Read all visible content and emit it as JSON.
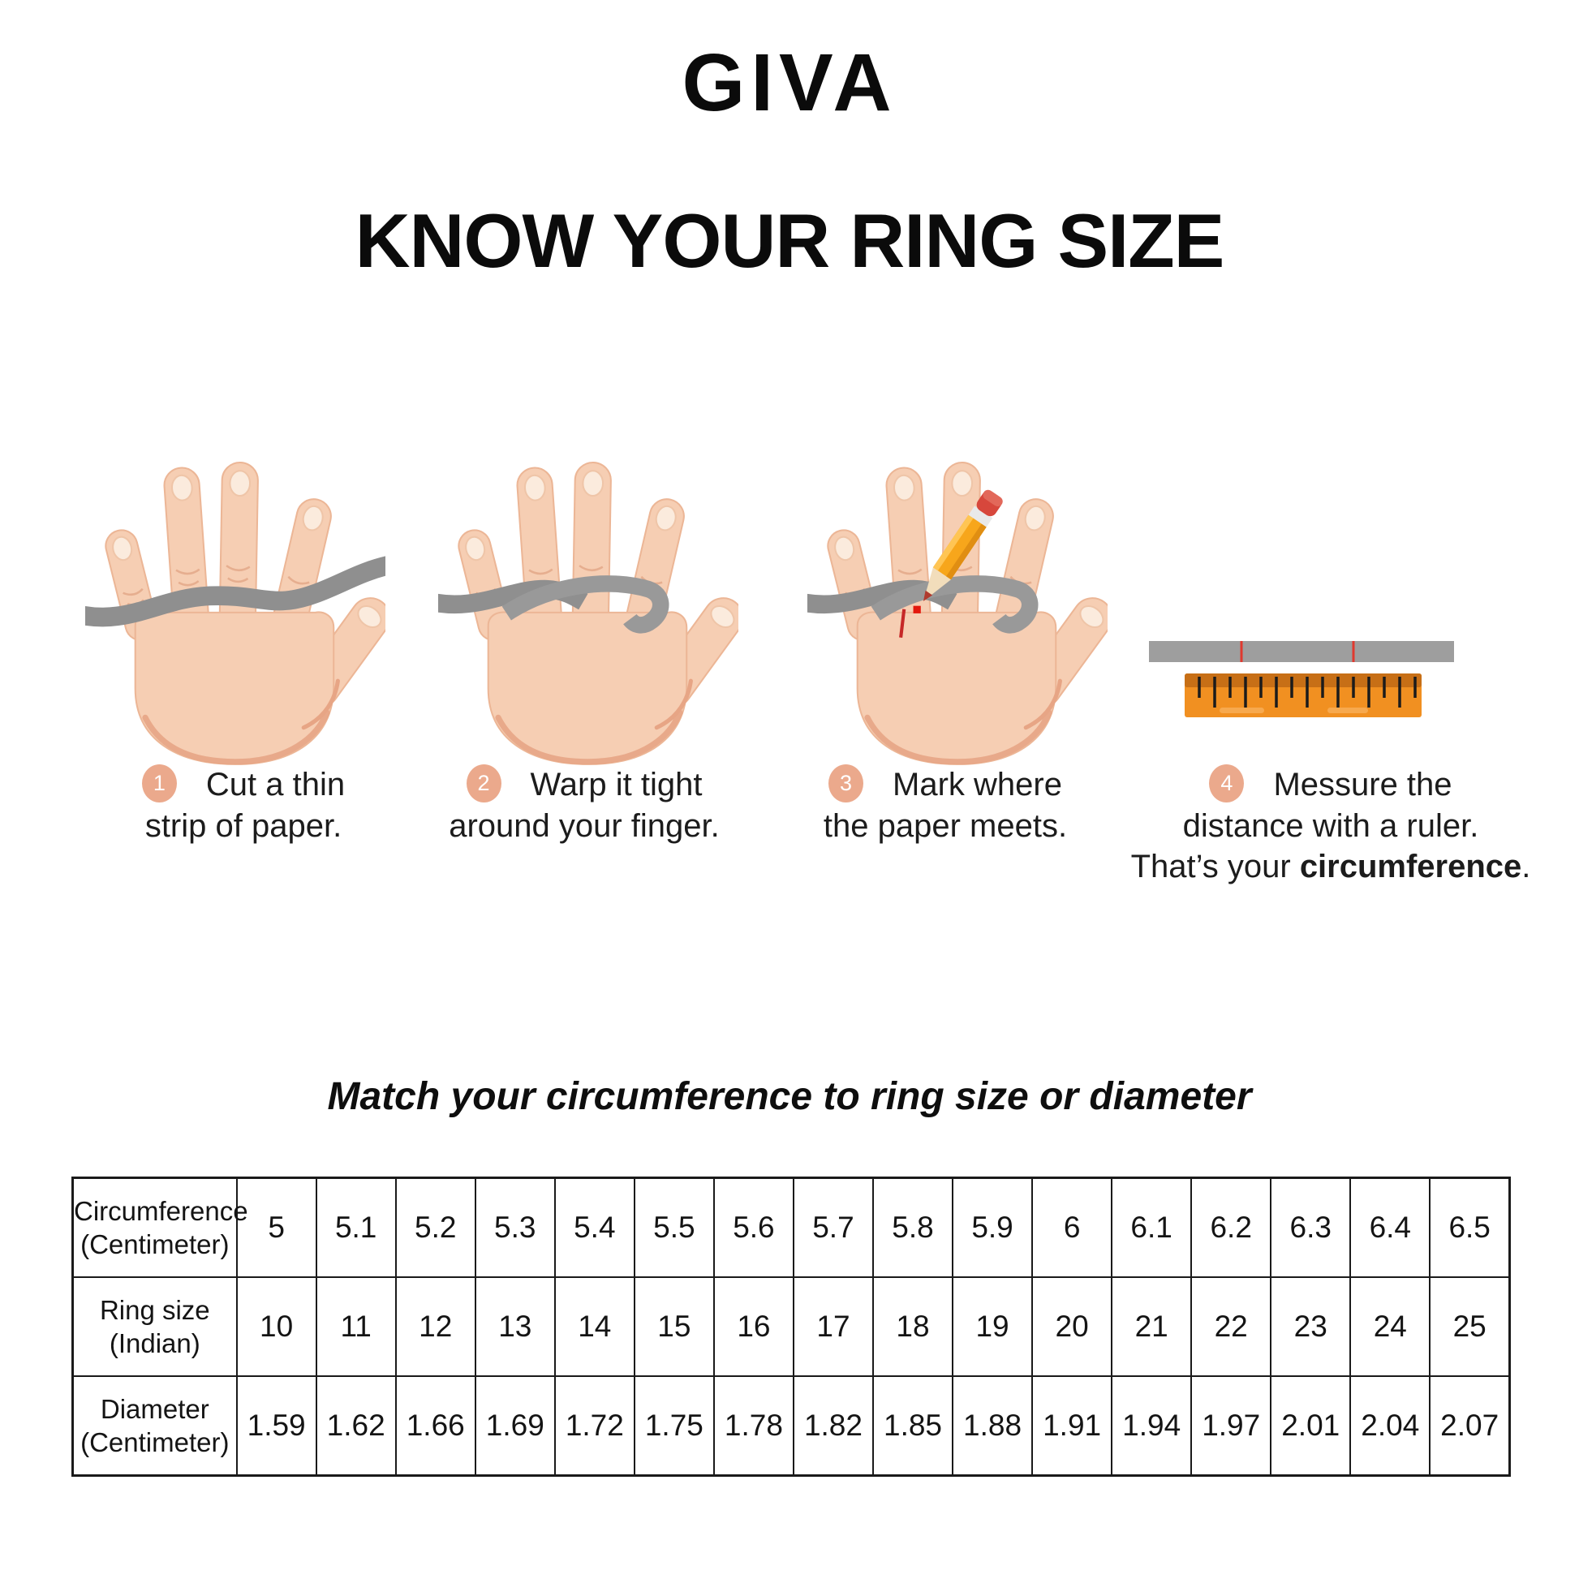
{
  "brand": "GIVA",
  "title": "KNOW YOUR RING SIZE",
  "steps": [
    {
      "number": "1",
      "line1": "Cut a thin",
      "line2": "strip of paper."
    },
    {
      "number": "2",
      "line1": "Warp it tight",
      "line2": "around your finger."
    },
    {
      "number": "3",
      "line1": "Mark where",
      "line2": "the paper meets."
    },
    {
      "number": "4",
      "line1": "Messure the",
      "line2": "distance with a ruler.",
      "line3_prefix": "That’s your ",
      "line3_bold": "circumference",
      "line3_suffix": "."
    }
  ],
  "match_heading": "Match your circumference to ring size or diameter",
  "table": {
    "rows": [
      {
        "label_line1": "Circumference",
        "label_line2": "(Centimeter)",
        "values": [
          "5",
          "5.1",
          "5.2",
          "5.3",
          "5.4",
          "5.5",
          "5.6",
          "5.7",
          "5.8",
          "5.9",
          "6",
          "6.1",
          "6.2",
          "6.3",
          "6.4",
          "6.5"
        ]
      },
      {
        "label_line1": "Ring size",
        "label_line2": "(Indian)",
        "values": [
          "10",
          "11",
          "12",
          "13",
          "14",
          "15",
          "16",
          "17",
          "18",
          "19",
          "20",
          "21",
          "22",
          "23",
          "24",
          "25"
        ]
      },
      {
        "label_line1": "Diameter",
        "label_line2": "(Centimeter)",
        "values": [
          "1.59",
          "1.62",
          "1.66",
          "1.69",
          "1.72",
          "1.75",
          "1.78",
          "1.82",
          "1.85",
          "1.88",
          "1.91",
          "1.94",
          "1.97",
          "2.01",
          "2.04",
          "2.07"
        ]
      }
    ]
  },
  "colors": {
    "step_badge": "#EBA98C",
    "skin": "#F6CEB3",
    "skin_shadow": "#E7A585",
    "paper_strip": "#8F8F8F",
    "mark_red": "#D92B23",
    "ruler_orange": "#F19021",
    "ruler_band": "#C76F16",
    "pencil_yellow": "#F7A61B",
    "pencil_eraser": "#D7473C"
  }
}
